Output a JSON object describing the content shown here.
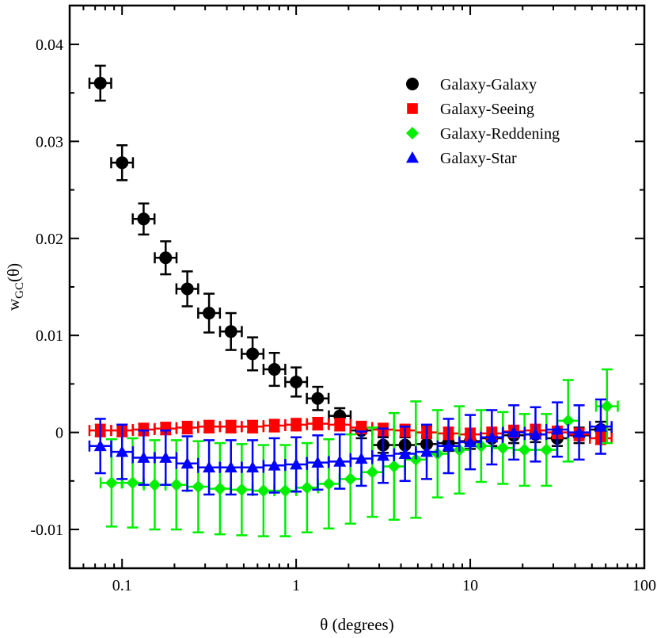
{
  "chart_data": {
    "type": "scatter",
    "title": "",
    "xlabel": "θ (degrees)",
    "ylabel_main": "w",
    "ylabel_sub": "GC",
    "ylabel_arg": "(θ)",
    "xscale": "log",
    "xlim": [
      0.05,
      100
    ],
    "ylim": [
      -0.014,
      0.044
    ],
    "xticks": [
      {
        "value": 0.1,
        "label": "0.1"
      },
      {
        "value": 1,
        "label": "1"
      },
      {
        "value": 10,
        "label": "10"
      },
      {
        "value": 100,
        "label": "100"
      }
    ],
    "yticks": [
      {
        "value": -0.01,
        "label": "-0.01"
      },
      {
        "value": 0,
        "label": "0"
      },
      {
        "value": 0.01,
        "label": "0.01"
      },
      {
        "value": 0.02,
        "label": "0.02"
      },
      {
        "value": 0.03,
        "label": "0.03"
      },
      {
        "value": 0.04,
        "label": "0.04"
      }
    ],
    "legend_position": "top-right",
    "series": [
      {
        "name": "Galaxy-Galaxy",
        "marker": "circle",
        "color": "#000000",
        "x": [
          0.075,
          0.1,
          0.133,
          0.178,
          0.237,
          0.316,
          0.422,
          0.562,
          0.75,
          1.0,
          1.33,
          1.78,
          2.37,
          3.16,
          4.22,
          5.62,
          7.5,
          10.0,
          13.3,
          17.8,
          23.7,
          31.6,
          42.2,
          56.2
        ],
        "y": [
          0.036,
          0.0278,
          0.022,
          0.018,
          0.0148,
          0.0123,
          0.0104,
          0.0081,
          0.0065,
          0.0052,
          0.0035,
          0.0017,
          0.0002,
          -0.0013,
          -0.0013,
          -0.0012,
          -0.0011,
          -0.0009,
          -0.0006,
          -0.0003,
          -0.0002,
          -0.0006,
          -0.0003,
          0.0003
        ],
        "yerr": [
          0.0018,
          0.0018,
          0.0016,
          0.0017,
          0.0018,
          0.002,
          0.0019,
          0.0017,
          0.0017,
          0.0015,
          0.0012,
          0.0008,
          0.0008,
          0.0008,
          0.0008,
          0.0008,
          0.0008,
          0.0008,
          0.0008,
          0.0008,
          0.0008,
          0.0008,
          0.0008,
          0.0008
        ]
      },
      {
        "name": "Galaxy-Seeing",
        "marker": "square",
        "color": "#ff0000",
        "x": [
          0.075,
          0.1,
          0.133,
          0.178,
          0.237,
          0.316,
          0.422,
          0.562,
          0.75,
          1.0,
          1.33,
          1.78,
          2.37,
          3.16,
          4.22,
          5.62,
          7.5,
          10.0,
          13.3,
          17.8,
          23.7,
          31.6,
          42.2,
          56.2
        ],
        "y": [
          0.0002,
          0.0002,
          0.0003,
          0.0004,
          0.0005,
          0.0006,
          0.0006,
          0.0006,
          0.0007,
          0.0008,
          0.0009,
          0.0008,
          0.0005,
          0.0003,
          0.0002,
          0.0,
          -0.0001,
          -0.0002,
          -0.0001,
          0.0001,
          0.0002,
          0.0,
          -0.0002,
          -0.0006
        ],
        "yerr": [
          0.0006,
          0.0006,
          0.0006,
          0.0006,
          0.0006,
          0.0006,
          0.0006,
          0.0006,
          0.0006,
          0.0006,
          0.0006,
          0.0006,
          0.0006,
          0.0006,
          0.0006,
          0.0006,
          0.0006,
          0.0006,
          0.0006,
          0.0006,
          0.0006,
          0.0006,
          0.0006,
          0.0006
        ]
      },
      {
        "name": "Galaxy-Reddening",
        "marker": "diamond",
        "color": "#00ee00",
        "x": [
          0.087,
          0.115,
          0.154,
          0.205,
          0.274,
          0.365,
          0.487,
          0.649,
          0.866,
          1.155,
          1.54,
          2.05,
          2.74,
          3.65,
          4.87,
          6.49,
          8.66,
          11.55,
          15.4,
          20.5,
          27.4,
          36.5,
          61.0
        ],
        "y": [
          -0.0052,
          -0.0052,
          -0.0054,
          -0.0054,
          -0.0056,
          -0.0058,
          -0.0059,
          -0.006,
          -0.006,
          -0.0057,
          -0.0053,
          -0.0048,
          -0.0041,
          -0.0035,
          -0.0028,
          -0.0022,
          -0.0018,
          -0.0014,
          -0.0016,
          -0.0018,
          -0.0018,
          0.0012,
          0.0027
        ],
        "yerr": [
          0.0045,
          0.0046,
          0.0046,
          0.0046,
          0.0047,
          0.0047,
          0.0047,
          0.0047,
          0.0047,
          0.0046,
          0.0046,
          0.0046,
          0.0046,
          0.0055,
          0.006,
          0.0045,
          0.0045,
          0.0037,
          0.0037,
          0.0037,
          0.0037,
          0.0042,
          0.0038
        ]
      },
      {
        "name": "Galaxy-Star",
        "marker": "triangle",
        "color": "#0000ff",
        "x": [
          0.075,
          0.1,
          0.133,
          0.178,
          0.237,
          0.316,
          0.422,
          0.562,
          0.75,
          1.0,
          1.33,
          1.78,
          2.37,
          3.16,
          4.22,
          5.62,
          7.5,
          10.0,
          13.3,
          17.8,
          23.7,
          31.6,
          42.2,
          56.2
        ],
        "y": [
          -0.0014,
          -0.002,
          -0.0026,
          -0.0026,
          -0.0032,
          -0.0036,
          -0.0036,
          -0.0036,
          -0.0034,
          -0.0033,
          -0.0031,
          -0.003,
          -0.0027,
          -0.0024,
          -0.0022,
          -0.002,
          -0.0014,
          -0.001,
          -0.0005,
          0.0,
          -0.0002,
          0.0003,
          0.0,
          0.0006
        ],
        "yerr": [
          0.0028,
          0.0028,
          0.0028,
          0.0028,
          0.0028,
          0.0028,
          0.0028,
          0.0028,
          0.0028,
          0.0028,
          0.0028,
          0.0028,
          0.0028,
          0.0028,
          0.0028,
          0.0028,
          0.0028,
          0.0028,
          0.0028,
          0.0028,
          0.0028,
          0.0028,
          0.0028,
          0.0028
        ]
      }
    ]
  }
}
